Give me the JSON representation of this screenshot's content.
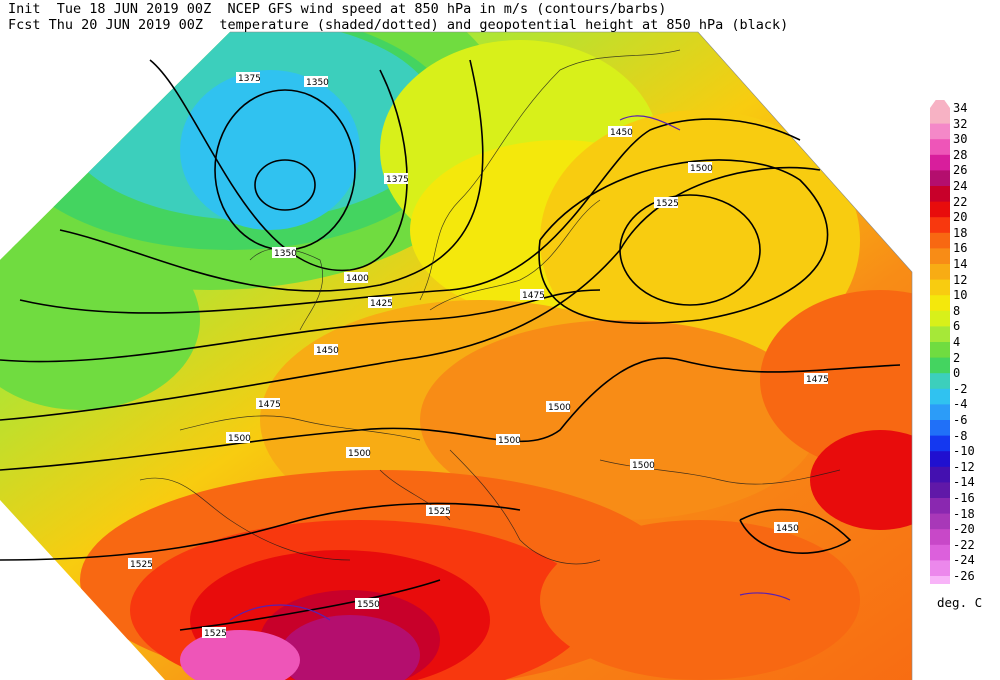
{
  "header": {
    "line1": "Init  Tue 18 JUN 2019 00Z  NCEP GFS wind speed at 850 hPa in m/s (contours/barbs)",
    "line2": "Fcst Thu 20 JUN 2019 00Z  temperature (shaded/dotted) and geopotential height at 850 hPa (black)"
  },
  "colorbar": {
    "units": "deg. C",
    "levels": [
      {
        "label": "34",
        "color": "#f7b2c4"
      },
      {
        "label": "32",
        "color": "#f488c8"
      },
      {
        "label": "30",
        "color": "#ee55b8"
      },
      {
        "label": "28",
        "color": "#d81e9c"
      },
      {
        "label": "26",
        "color": "#b40e6e"
      },
      {
        "label": "24",
        "color": "#c8002a"
      },
      {
        "label": "22",
        "color": "#e80c0c"
      },
      {
        "label": "20",
        "color": "#f8380e"
      },
      {
        "label": "18",
        "color": "#f86812"
      },
      {
        "label": "16",
        "color": "#f88c16"
      },
      {
        "label": "14",
        "color": "#f8ac14"
      },
      {
        "label": "12",
        "color": "#f8cc10"
      },
      {
        "label": "10",
        "color": "#f4e80c"
      },
      {
        "label": "8",
        "color": "#d8f01a"
      },
      {
        "label": "6",
        "color": "#a6e838"
      },
      {
        "label": "4",
        "color": "#70dc40"
      },
      {
        "label": "2",
        "color": "#44d460"
      },
      {
        "label": "0",
        "color": "#3ccfbc"
      },
      {
        "label": "-2",
        "color": "#30c2f0"
      },
      {
        "label": "-4",
        "color": "#2c9cf8"
      },
      {
        "label": "-6",
        "color": "#2070f8"
      },
      {
        "label": "-8",
        "color": "#1438f0"
      },
      {
        "label": "-10",
        "color": "#2010d0"
      },
      {
        "label": "-12",
        "color": "#4410b0"
      },
      {
        "label": "-14",
        "color": "#6018a8"
      },
      {
        "label": "-16",
        "color": "#8a28b0"
      },
      {
        "label": "-18",
        "color": "#a838b8"
      },
      {
        "label": "-20",
        "color": "#c848c8"
      },
      {
        "label": "-22",
        "color": "#dc60dc"
      },
      {
        "label": "-24",
        "color": "#ec88ec"
      },
      {
        "label": "-26",
        "color": "#f8b4f8"
      }
    ]
  },
  "height_labels": [
    "1375",
    "1350",
    "1375",
    "1350",
    "1400",
    "1425",
    "1450",
    "1475",
    "1500",
    "1525",
    "1550",
    "1450",
    "1500",
    "1525",
    "1475",
    "1500",
    "1500",
    "1500",
    "1500",
    "1450",
    "1475",
    "1525",
    "1525"
  ]
}
